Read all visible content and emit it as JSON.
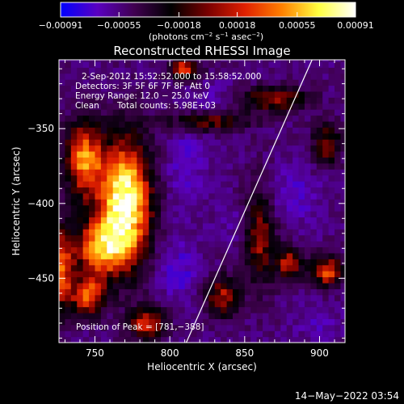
{
  "chart_data": {
    "type": "heatmap",
    "title": "Reconstructed RHESSI Image",
    "xlabel": "Heliocentric X (arcsec)",
    "ylabel": "Heliocentric Y (arcsec)",
    "xlim": [
      726,
      917
    ],
    "ylim": [
      -493,
      -304
    ],
    "x_ticks": [
      "750",
      "800",
      "850",
      "900"
    ],
    "x_tick_values": [
      750,
      800,
      850,
      900
    ],
    "y_ticks": [
      "−350",
      "−400",
      "−450"
    ],
    "y_tick_values": [
      -350,
      -400,
      -450
    ],
    "colorbar": {
      "ticks": [
        "−0.00091",
        "−0.00055",
        "−0.00018",
        "0.00018",
        "0.00055",
        "0.00091"
      ],
      "tick_values": [
        -0.00091,
        -0.00055,
        -0.00018,
        0.00018,
        0.00055,
        0.00091
      ],
      "range": [
        -0.00091,
        0.00091
      ],
      "unit_label": [
        "(photons cm",
        "−2",
        " s",
        "−1",
        " asec",
        "−2",
        ")"
      ],
      "colors": [
        "#0000ff",
        "#5a00c0",
        "#400050",
        "#000000",
        "#7a0000",
        "#e02000",
        "#ff8000",
        "#ffff40",
        "#ffffff"
      ]
    },
    "annotations": {
      "time": "2-Sep-2012 15:52:52.000 to 15:58:52.000",
      "detectors": "Detectors: 3F 5F 6F 7F 8F, Att 0",
      "energy": "Energy Range: 12.0 − 25.0 keV",
      "method": "Clean",
      "counts": "Total counts: 5.98E+03",
      "peak": "Position of Peak = [781,−388]"
    },
    "peak": [
      781,
      -388
    ],
    "limb_line": [
      [
        811,
        -493
      ],
      [
        895,
        -304
      ]
    ],
    "emission_regions": [
      {
        "x": 770,
        "y": -398,
        "peak": 0.00091,
        "sx": 13,
        "sy": 30
      },
      {
        "x": 742,
        "y": -370,
        "peak": 0.0005,
        "sx": 9,
        "sy": 18
      },
      {
        "x": 752,
        "y": -430,
        "peak": 0.0004,
        "sx": 14,
        "sy": 14
      },
      {
        "x": 745,
        "y": -462,
        "peak": 0.00045,
        "sx": 8,
        "sy": 9
      },
      {
        "x": 728,
        "y": -445,
        "peak": 0.00035,
        "sx": 5,
        "sy": 20
      },
      {
        "x": 810,
        "y": -310,
        "peak": 0.00045,
        "sx": 7,
        "sy": 5
      },
      {
        "x": 825,
        "y": -345,
        "peak": 0.00018,
        "sx": 20,
        "sy": 5
      },
      {
        "x": 870,
        "y": -330,
        "peak": 0.00025,
        "sx": 16,
        "sy": 6
      },
      {
        "x": 905,
        "y": -360,
        "peak": 0.0002,
        "sx": 7,
        "sy": 10
      },
      {
        "x": 860,
        "y": -420,
        "peak": 0.00025,
        "sx": 8,
        "sy": 24
      },
      {
        "x": 880,
        "y": -440,
        "peak": 0.0003,
        "sx": 6,
        "sy": 8
      },
      {
        "x": 905,
        "y": -445,
        "peak": 0.00045,
        "sx": 8,
        "sy": 7
      },
      {
        "x": 785,
        "y": -480,
        "peak": 0.00035,
        "sx": 9,
        "sy": 8
      },
      {
        "x": 835,
        "y": -462,
        "peak": 0.00025,
        "sx": 8,
        "sy": 10
      },
      {
        "x": 810,
        "y": -375,
        "peak": -0.0004,
        "sx": 10,
        "sy": 22
      },
      {
        "x": 805,
        "y": -445,
        "peak": -0.00045,
        "sx": 10,
        "sy": 14
      },
      {
        "x": 880,
        "y": -395,
        "peak": -0.0004,
        "sx": 14,
        "sy": 14
      },
      {
        "x": 845,
        "y": -415,
        "peak": -0.0003,
        "sx": 8,
        "sy": 10
      },
      {
        "x": 900,
        "y": -480,
        "peak": -0.0003,
        "sx": 10,
        "sy": 8
      },
      {
        "x": 830,
        "y": -330,
        "peak": -0.00025,
        "sx": 10,
        "sy": 8
      }
    ]
  },
  "footer": {
    "timestamp": "14−May−2022 03:54"
  }
}
